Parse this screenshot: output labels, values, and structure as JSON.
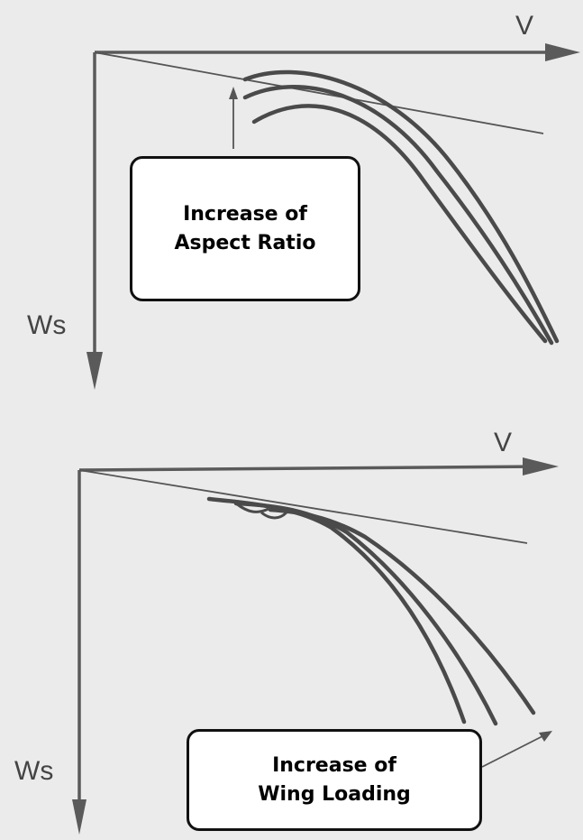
{
  "diagrams": [
    {
      "x_axis_label": "V",
      "y_axis_label": "Ws",
      "callout": {
        "line1": "Increase of",
        "line2": "Aspect Ratio"
      }
    },
    {
      "x_axis_label": "V",
      "y_axis_label": "Ws",
      "callout": {
        "line1": "Increase of",
        "line2": "Wing Loading"
      }
    }
  ],
  "colors": {
    "background": "#ebebeb",
    "curve": "#4a4a4a",
    "axis": "#5a5a5a",
    "callout_fill": "#ffffff",
    "callout_border": "#111111"
  }
}
